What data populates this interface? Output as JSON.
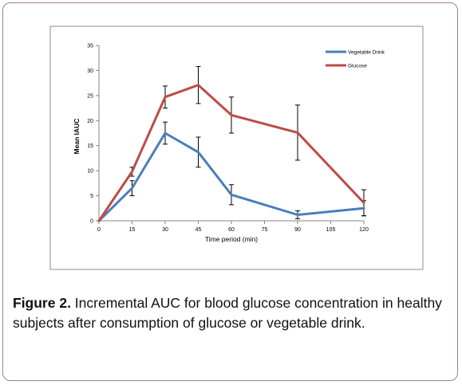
{
  "chart_data": {
    "type": "line",
    "x": [
      0,
      15,
      30,
      45,
      60,
      90,
      120
    ],
    "series": [
      {
        "name": "Vegetable Drink",
        "color": "#4a7ebb",
        "values": [
          0,
          6.5,
          17.5,
          13.7,
          5.2,
          1.2,
          2.5
        ],
        "errors": [
          0,
          1.5,
          2.2,
          3.0,
          2.0,
          0.8,
          1.5
        ]
      },
      {
        "name": "Glucose",
        "color": "#be4b48",
        "values": [
          0,
          9.8,
          24.7,
          27.1,
          21.1,
          17.6,
          3.6
        ],
        "errors": [
          0,
          0.9,
          2.2,
          3.7,
          3.6,
          5.5,
          2.6
        ]
      }
    ],
    "title": "",
    "xlabel": "Time period (min)",
    "ylabel": "Mean IAUC",
    "xticks": [
      "0",
      "15",
      "30",
      "45",
      "60",
      "75",
      "90",
      "105",
      "120"
    ],
    "yticks": [
      "0",
      "5",
      "10",
      "15",
      "20",
      "25",
      "30",
      "35"
    ],
    "xlim": [
      0,
      120
    ],
    "ylim": [
      0,
      35
    ],
    "grid": false,
    "legend_position": "top-right"
  },
  "caption": {
    "label": "Figure 2.",
    "text": " Incremental AUC for blood glucose concentration in healthy subjects after consumption of glucose or vegetable drink."
  }
}
